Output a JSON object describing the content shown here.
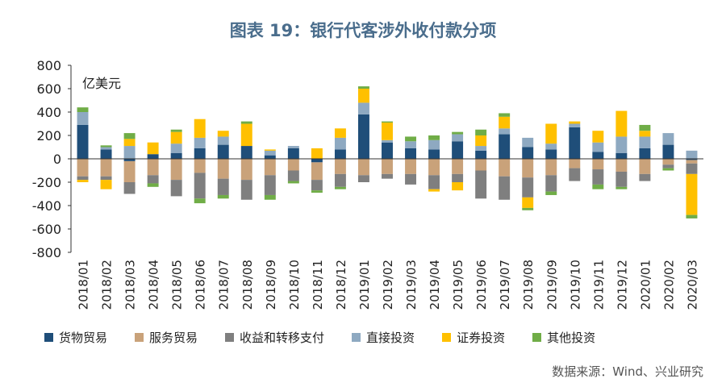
{
  "chart_data": {
    "type": "bar",
    "stacked": true,
    "title": "图表 19：银行代客涉外收付款分项",
    "unit_label": "亿美元",
    "source": "数据来源：Wind、兴业研究",
    "ylim": [
      -800,
      800
    ],
    "yticks": [
      800,
      600,
      400,
      200,
      0,
      -200,
      -400,
      -600,
      -800
    ],
    "grid": false,
    "legend_position": "bottom",
    "categories": [
      "2018/01",
      "2018/02",
      "2018/03",
      "2018/04",
      "2018/05",
      "2018/06",
      "2018/07",
      "2018/08",
      "2018/09",
      "2018/10",
      "2018/11",
      "2018/12",
      "2019/01",
      "2019/02",
      "2019/03",
      "2019/04",
      "2019/05",
      "2019/06",
      "2019/07",
      "2019/08",
      "2019/09",
      "2019/10",
      "2019/11",
      "2019/12",
      "2020/01",
      "2020/02",
      "2020/03"
    ],
    "series": [
      {
        "name": "货物贸易",
        "color": "#1f4e79",
        "values": [
          290,
          80,
          -20,
          40,
          50,
          90,
          120,
          110,
          30,
          90,
          -30,
          80,
          380,
          140,
          90,
          80,
          150,
          70,
          210,
          100,
          80,
          270,
          60,
          50,
          90,
          120,
          -10
        ]
      },
      {
        "name": "服务贸易",
        "color": "#c9a27a",
        "values": [
          -150,
          -150,
          -180,
          -140,
          -180,
          -120,
          -170,
          -180,
          -140,
          -100,
          -150,
          -130,
          -140,
          -130,
          -130,
          -140,
          -130,
          -100,
          -150,
          -160,
          -140,
          -80,
          -90,
          -110,
          -130,
          -50,
          -30
        ]
      },
      {
        "name": "收益和转移支付",
        "color": "#7f7f7f",
        "values": [
          -30,
          -30,
          -100,
          -70,
          -140,
          -220,
          -140,
          -170,
          -170,
          -90,
          -90,
          -110,
          -60,
          -40,
          -90,
          -120,
          -70,
          -240,
          -200,
          -170,
          -140,
          -110,
          -130,
          -130,
          -60,
          -30,
          -90
        ]
      },
      {
        "name": "直接投资",
        "color": "#8ea9c1",
        "values": [
          110,
          20,
          110,
          0,
          80,
          90,
          70,
          0,
          40,
          20,
          0,
          100,
          100,
          20,
          60,
          80,
          60,
          40,
          50,
          80,
          50,
          30,
          80,
          140,
          100,
          100,
          70
        ]
      },
      {
        "name": "证券投资",
        "color": "#ffc000",
        "values": [
          -20,
          -80,
          60,
          100,
          100,
          160,
          50,
          190,
          10,
          0,
          90,
          80,
          120,
          150,
          0,
          -20,
          -70,
          90,
          100,
          -90,
          170,
          20,
          100,
          220,
          50,
          0,
          -350
        ]
      },
      {
        "name": "其他投资",
        "color": "#70ad47",
        "values": [
          40,
          15,
          50,
          -30,
          20,
          -40,
          -30,
          20,
          -40,
          -20,
          -20,
          -20,
          20,
          10,
          40,
          40,
          20,
          50,
          30,
          -20,
          -30,
          0,
          -40,
          -20,
          50,
          -20,
          -30
        ]
      }
    ]
  }
}
